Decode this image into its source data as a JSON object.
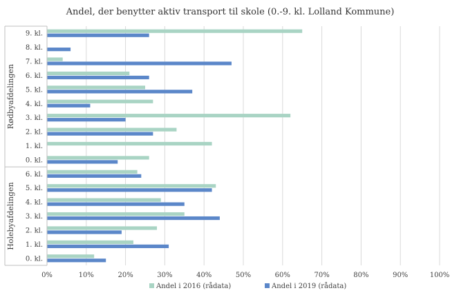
{
  "chart_data": {
    "type": "bar",
    "orientation": "horizontal",
    "title": "Andel, der benytter aktiv transport til skole (0.-9. kl. Lolland Kommune)",
    "xlim": [
      0,
      100
    ],
    "x_ticks": [
      "0%",
      "10%",
      "20%",
      "30%",
      "40%",
      "50%",
      "60%",
      "70%",
      "80%",
      "90%",
      "100%"
    ],
    "grid": true,
    "legend_position": "bottom",
    "groups": [
      {
        "name": "Rødbyafdelingen",
        "categories": [
          "9. kl.",
          "8. kl.",
          "7. kl.",
          "6. kl.",
          "5. kl.",
          "4. kl.",
          "3. kl.",
          "2. kl.",
          "1. kl.",
          "0. kl."
        ]
      },
      {
        "name": "Holebyafdelingen",
        "categories": [
          "6. kl.",
          "5. kl.",
          "4. kl.",
          "3. kl.",
          "2. kl.",
          "1. kl.",
          "0. kl."
        ]
      }
    ],
    "series": [
      {
        "name": "Andel i 2016 (rådata)",
        "color": "#a9d4c4",
        "values": [
          65,
          0,
          4,
          21,
          25,
          27,
          62,
          33,
          42,
          26,
          23,
          43,
          29,
          35,
          28,
          22,
          12
        ]
      },
      {
        "name": "Andel i 2019 (rådata)",
        "color": "#5b87c9",
        "values": [
          26,
          6,
          47,
          26,
          37,
          11,
          20,
          27,
          0,
          18,
          24,
          42,
          35,
          44,
          19,
          31,
          15
        ]
      }
    ]
  }
}
